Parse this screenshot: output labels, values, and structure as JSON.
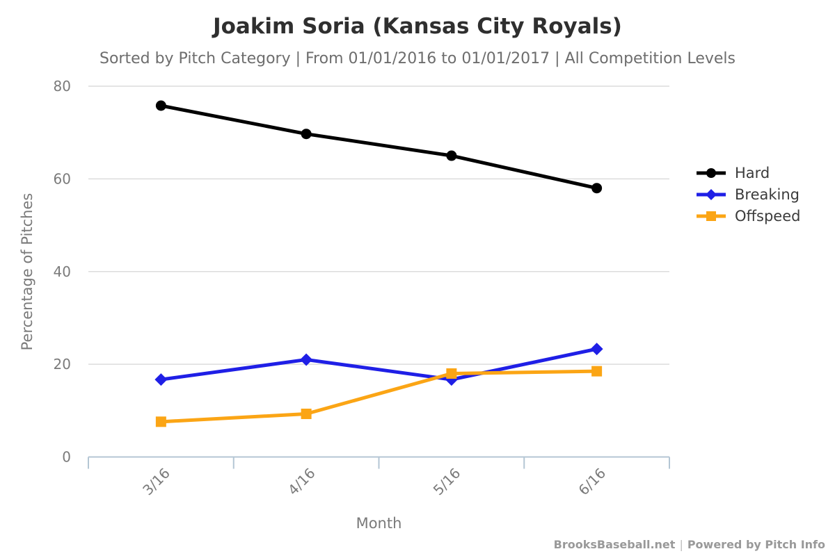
{
  "header": {
    "title": "Joakim Soria (Kansas City Royals)",
    "subtitle": "Sorted by Pitch Category | From 01/01/2016 to 01/01/2017 | All Competition Levels"
  },
  "footer": {
    "brand": "BrooksBaseball.net",
    "separator": "|",
    "powered": "Powered by Pitch Info"
  },
  "chart_data": {
    "type": "line",
    "title": "Joakim Soria (Kansas City Royals)",
    "subtitle": "Sorted by Pitch Category | From 01/01/2016 to 01/01/2017 | All Competition Levels",
    "categories": [
      "3/16",
      "4/16",
      "5/16",
      "6/16"
    ],
    "series": [
      {
        "name": "Hard",
        "color": "#000000",
        "marker": "circle",
        "values": [
          75.8,
          69.7,
          65.0,
          58.0
        ]
      },
      {
        "name": "Breaking",
        "color": "#1f1fe6",
        "marker": "diamond",
        "values": [
          16.7,
          21.0,
          16.7,
          23.3
        ]
      },
      {
        "name": "Offspeed",
        "color": "#fba515",
        "marker": "square",
        "values": [
          7.6,
          9.3,
          18.0,
          18.5
        ]
      }
    ],
    "xlabel": "Month",
    "ylabel": "Percentage of Pitches",
    "ylim": [
      0,
      80
    ],
    "yticks": [
      0,
      20,
      40,
      60,
      80
    ],
    "grid": true,
    "legend_position": "right",
    "style": {
      "grid_color": "#dcdcdc",
      "axis_color": "#b4c6d4",
      "tick_label_color": "#7a7a7a",
      "axis_title_color": "#7a7a7a",
      "legend_text_color": "#3b3b3b",
      "line_width": 5
    }
  }
}
